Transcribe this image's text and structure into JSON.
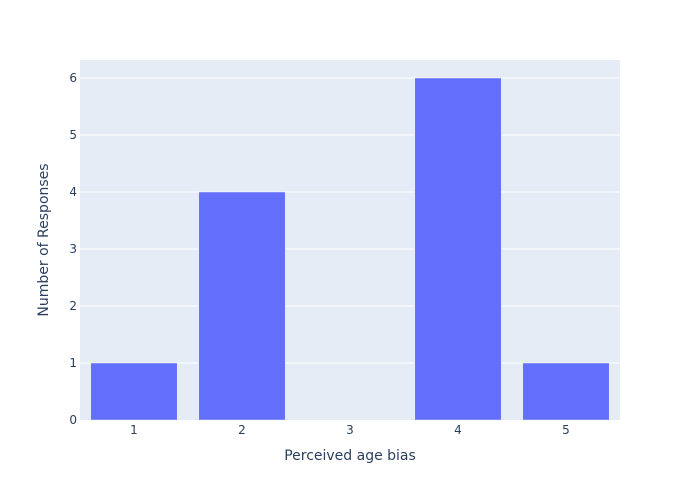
{
  "chart_data": {
    "type": "bar",
    "title": "",
    "xlabel": "Perceived age bias",
    "ylabel": "Number of Responses",
    "categories": [
      "1",
      "2",
      "3",
      "4",
      "5"
    ],
    "values": [
      1,
      4,
      0,
      6,
      1
    ],
    "ylim": [
      0,
      6.3158
    ],
    "yticks": [
      "0",
      "1",
      "2",
      "3",
      "4",
      "5",
      "6"
    ],
    "grid": true,
    "legend": "none",
    "colors": {
      "bar": "#636efa",
      "plot_background": "#e5ecf6",
      "gridline": "#ffffff",
      "text": "#2a3f5f"
    }
  }
}
